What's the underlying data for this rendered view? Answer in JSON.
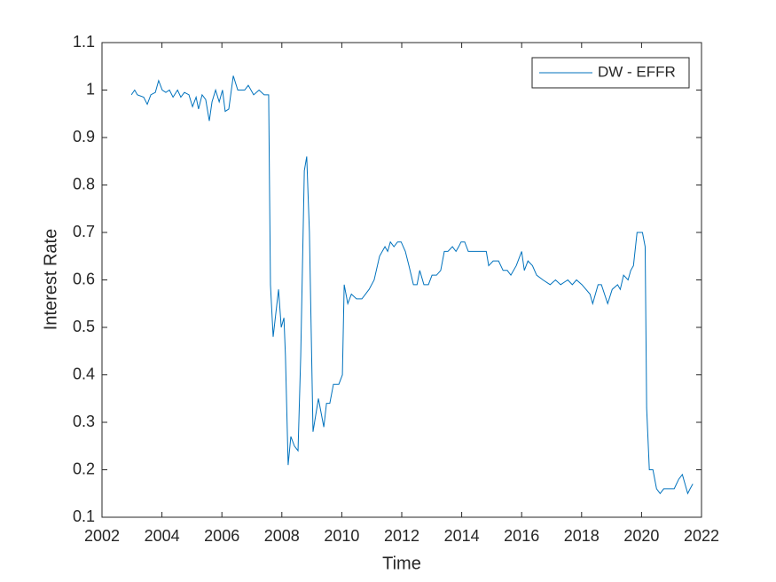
{
  "chart_data": {
    "type": "line",
    "xlabel": "Time",
    "ylabel": "Interest Rate",
    "x": [
      2002.98,
      2003.09,
      2003.18,
      2003.39,
      2003.51,
      2003.63,
      2003.78,
      2003.89,
      2004.01,
      2004.13,
      2004.25,
      2004.37,
      2004.52,
      2004.63,
      2004.75,
      2004.9,
      2005.02,
      2005.14,
      2005.22,
      2005.34,
      2005.46,
      2005.58,
      2005.67,
      2005.79,
      2005.91,
      2006.02,
      2006.11,
      2006.23,
      2006.38,
      2006.53,
      2006.76,
      2006.88,
      2007.06,
      2007.24,
      2007.41,
      2007.56,
      2007.62,
      2007.71,
      2007.89,
      2007.98,
      2008.07,
      2008.12,
      2008.21,
      2008.3,
      2008.42,
      2008.54,
      2008.63,
      2008.75,
      2008.83,
      2008.92,
      2009.04,
      2009.22,
      2009.4,
      2009.49,
      2009.6,
      2009.72,
      2009.9,
      2010.02,
      2010.08,
      2010.2,
      2010.32,
      2010.49,
      2010.67,
      2010.91,
      2011.08,
      2011.26,
      2011.44,
      2011.53,
      2011.62,
      2011.74,
      2011.86,
      2011.98,
      2012.12,
      2012.24,
      2012.39,
      2012.51,
      2012.6,
      2012.74,
      2012.89,
      2013.01,
      2013.16,
      2013.3,
      2013.42,
      2013.54,
      2013.69,
      2013.81,
      2013.9,
      2013.98,
      2014.1,
      2014.22,
      2014.34,
      2014.46,
      2014.61,
      2014.82,
      2014.9,
      2015.05,
      2015.23,
      2015.38,
      2015.52,
      2015.64,
      2015.82,
      2016.0,
      2016.09,
      2016.21,
      2016.36,
      2016.5,
      2016.71,
      2016.95,
      2017.13,
      2017.3,
      2017.54,
      2017.69,
      2017.83,
      2018.01,
      2018.28,
      2018.37,
      2018.55,
      2018.66,
      2018.87,
      2019.02,
      2019.2,
      2019.29,
      2019.4,
      2019.55,
      2019.64,
      2019.73,
      2019.85,
      2020.03,
      2020.12,
      2020.17,
      2020.26,
      2020.38,
      2020.5,
      2020.62,
      2020.74,
      2020.97,
      2021.09,
      2021.24,
      2021.36,
      2021.45,
      2021.54,
      2021.62,
      2021.71
    ],
    "series": [
      {
        "name": "DW - EFFR",
        "color": "#0072bd",
        "values": [
          0.99,
          1.0,
          0.99,
          0.985,
          0.97,
          0.99,
          0.995,
          1.02,
          1.0,
          0.995,
          1.0,
          0.985,
          1.0,
          0.985,
          0.995,
          0.99,
          0.965,
          0.985,
          0.96,
          0.99,
          0.98,
          0.935,
          0.975,
          1.0,
          0.975,
          1.0,
          0.955,
          0.96,
          1.03,
          1.0,
          1.0,
          1.01,
          0.99,
          1.0,
          0.99,
          0.99,
          0.59,
          0.48,
          0.58,
          0.5,
          0.52,
          0.44,
          0.21,
          0.27,
          0.25,
          0.24,
          0.44,
          0.83,
          0.86,
          0.7,
          0.28,
          0.35,
          0.29,
          0.34,
          0.34,
          0.38,
          0.38,
          0.4,
          0.59,
          0.55,
          0.57,
          0.56,
          0.56,
          0.58,
          0.6,
          0.65,
          0.67,
          0.66,
          0.68,
          0.67,
          0.68,
          0.68,
          0.66,
          0.63,
          0.59,
          0.59,
          0.62,
          0.59,
          0.59,
          0.61,
          0.61,
          0.62,
          0.66,
          0.66,
          0.67,
          0.66,
          0.67,
          0.68,
          0.68,
          0.66,
          0.66,
          0.66,
          0.66,
          0.66,
          0.63,
          0.64,
          0.64,
          0.62,
          0.62,
          0.61,
          0.63,
          0.66,
          0.62,
          0.64,
          0.63,
          0.61,
          0.6,
          0.59,
          0.6,
          0.59,
          0.6,
          0.59,
          0.6,
          0.59,
          0.57,
          0.55,
          0.59,
          0.59,
          0.55,
          0.58,
          0.59,
          0.58,
          0.61,
          0.6,
          0.62,
          0.63,
          0.7,
          0.7,
          0.67,
          0.33,
          0.2,
          0.2,
          0.16,
          0.15,
          0.16,
          0.16,
          0.16,
          0.18,
          0.19,
          0.17,
          0.15,
          0.16,
          0.17
        ]
      }
    ],
    "xlim": [
      2002,
      2022
    ],
    "xticks": [
      2002,
      2004,
      2006,
      2008,
      2010,
      2012,
      2014,
      2016,
      2018,
      2020,
      2022
    ],
    "ylim": [
      0.1,
      1.1
    ],
    "yticks": [
      0.1,
      0.2,
      0.3,
      0.4,
      0.5,
      0.6,
      0.7,
      0.8,
      0.9,
      1,
      1.1
    ],
    "grid": false,
    "legend": "top-right"
  }
}
